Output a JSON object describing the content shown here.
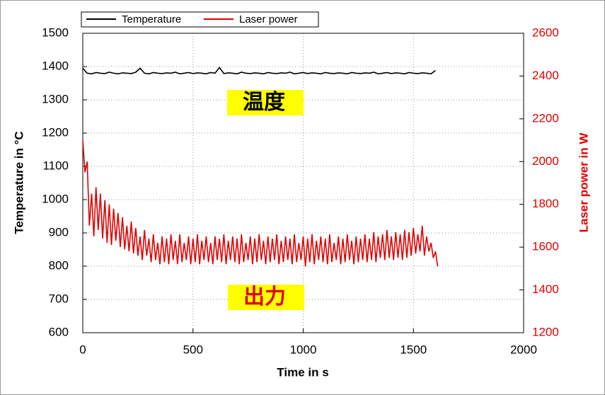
{
  "chart_data": {
    "type": "line",
    "xlabel": "Time in s",
    "ylabel": "Temperature in °C",
    "y2label": "Laser power in W",
    "xlim": [
      0,
      2000
    ],
    "xticks": [
      0,
      500,
      1000,
      1500,
      2000
    ],
    "ylim": [
      600,
      1500
    ],
    "yticks": [
      600,
      700,
      800,
      900,
      1000,
      1100,
      1200,
      1300,
      1400,
      1500
    ],
    "y2lim": [
      1200,
      2600
    ],
    "y2ticks": [
      1200,
      1400,
      1600,
      1800,
      2000,
      2200,
      2400,
      2600
    ],
    "grid": true,
    "legend": "top-left",
    "annotations": [
      "温度",
      "出力"
    ],
    "series": [
      {
        "name": "Temperature",
        "color": "#000000",
        "axis": "y",
        "x": [
          0,
          20,
          40,
          60,
          80,
          100,
          120,
          140,
          160,
          180,
          200,
          220,
          240,
          260,
          280,
          300,
          320,
          340,
          360,
          380,
          400,
          420,
          440,
          460,
          480,
          500,
          520,
          540,
          560,
          580,
          600,
          620,
          640,
          660,
          680,
          700,
          720,
          740,
          760,
          780,
          800,
          820,
          840,
          860,
          880,
          900,
          920,
          940,
          960,
          980,
          1000,
          1020,
          1040,
          1060,
          1080,
          1100,
          1120,
          1140,
          1160,
          1180,
          1200,
          1220,
          1240,
          1260,
          1280,
          1300,
          1320,
          1340,
          1360,
          1380,
          1400,
          1420,
          1440,
          1460,
          1480,
          1500,
          1520,
          1540,
          1560,
          1580,
          1600
        ],
        "values": [
          1395,
          1380,
          1378,
          1382,
          1380,
          1379,
          1383,
          1380,
          1378,
          1381,
          1380,
          1379,
          1383,
          1395,
          1380,
          1378,
          1382,
          1380,
          1379,
          1381,
          1380,
          1383,
          1378,
          1380,
          1382,
          1379,
          1381,
          1380,
          1378,
          1382,
          1380,
          1397,
          1379,
          1381,
          1380,
          1378,
          1383,
          1380,
          1379,
          1381,
          1380,
          1378,
          1382,
          1380,
          1379,
          1381,
          1380,
          1383,
          1378,
          1380,
          1382,
          1379,
          1381,
          1380,
          1378,
          1382,
          1380,
          1379,
          1381,
          1380,
          1378,
          1382,
          1380,
          1379,
          1381,
          1380,
          1383,
          1378,
          1380,
          1382,
          1379,
          1381,
          1380,
          1378,
          1382,
          1380,
          1379,
          1381,
          1380,
          1378,
          1388
        ]
      },
      {
        "name": "Laser power",
        "color": "#e00000",
        "axis": "y2",
        "x": [
          0,
          10,
          20,
          30,
          40,
          50,
          60,
          70,
          80,
          90,
          100,
          110,
          120,
          130,
          140,
          150,
          160,
          170,
          180,
          190,
          200,
          210,
          220,
          230,
          240,
          250,
          260,
          270,
          280,
          290,
          300,
          310,
          320,
          330,
          340,
          350,
          360,
          370,
          380,
          390,
          400,
          410,
          420,
          430,
          440,
          450,
          460,
          470,
          480,
          490,
          500,
          510,
          520,
          530,
          540,
          550,
          560,
          570,
          580,
          590,
          600,
          610,
          620,
          630,
          640,
          650,
          660,
          670,
          680,
          690,
          700,
          710,
          720,
          730,
          740,
          750,
          760,
          770,
          780,
          790,
          800,
          810,
          820,
          830,
          840,
          850,
          860,
          870,
          880,
          890,
          900,
          910,
          920,
          930,
          940,
          950,
          960,
          970,
          980,
          990,
          1000,
          1010,
          1020,
          1030,
          1040,
          1050,
          1060,
          1070,
          1080,
          1090,
          1100,
          1110,
          1120,
          1130,
          1140,
          1150,
          1160,
          1170,
          1180,
          1190,
          1200,
          1210,
          1220,
          1230,
          1240,
          1250,
          1260,
          1270,
          1280,
          1290,
          1300,
          1310,
          1320,
          1330,
          1340,
          1350,
          1360,
          1370,
          1380,
          1390,
          1400,
          1410,
          1420,
          1430,
          1440,
          1450,
          1460,
          1470,
          1480,
          1490,
          1500,
          1510,
          1520,
          1530,
          1540,
          1550,
          1560,
          1570,
          1580,
          1590,
          1600,
          1610
        ],
        "values": [
          2100,
          1950,
          2000,
          1700,
          1850,
          1650,
          1880,
          1680,
          1850,
          1640,
          1820,
          1620,
          1800,
          1610,
          1780,
          1630,
          1760,
          1600,
          1740,
          1590,
          1700,
          1580,
          1720,
          1570,
          1690,
          1560,
          1650,
          1540,
          1680,
          1560,
          1640,
          1530,
          1660,
          1540,
          1620,
          1520,
          1650,
          1530,
          1640,
          1520,
          1660,
          1540,
          1630,
          1520,
          1660,
          1530,
          1620,
          1540,
          1650,
          1520,
          1640,
          1530,
          1660,
          1520,
          1630,
          1540,
          1650,
          1530,
          1620,
          1520,
          1650,
          1540,
          1640,
          1530,
          1660,
          1520,
          1630,
          1540,
          1650,
          1530,
          1640,
          1520,
          1660,
          1530,
          1620,
          1540,
          1650,
          1520,
          1640,
          1530,
          1660,
          1540,
          1630,
          1520,
          1650,
          1530,
          1640,
          1540,
          1660,
          1520,
          1630,
          1530,
          1650,
          1540,
          1640,
          1520,
          1660,
          1530,
          1620,
          1540,
          1650,
          1510,
          1640,
          1530,
          1660,
          1520,
          1630,
          1540,
          1650,
          1530,
          1640,
          1520,
          1660,
          1530,
          1620,
          1540,
          1650,
          1520,
          1640,
          1530,
          1660,
          1540,
          1630,
          1520,
          1650,
          1530,
          1640,
          1540,
          1660,
          1530,
          1640,
          1540,
          1670,
          1530,
          1650,
          1550,
          1660,
          1540,
          1680,
          1550,
          1650,
          1540,
          1670,
          1550,
          1660,
          1540,
          1680,
          1550,
          1670,
          1560,
          1690,
          1570,
          1660,
          1580,
          1700,
          1560,
          1650,
          1580,
          1620,
          1550,
          1580,
          1510
        ]
      }
    ]
  }
}
